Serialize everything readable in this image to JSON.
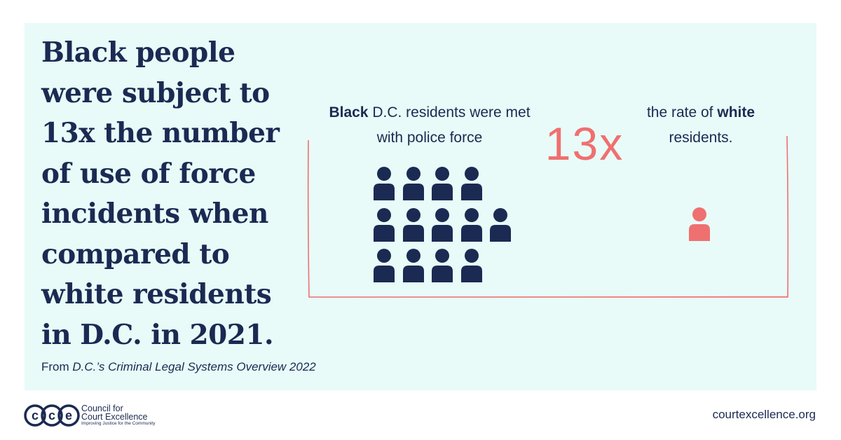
{
  "headline": "Black people were subject to 13x the number of use of force incidents when compared to white residents in D.C. in 2021.",
  "source": {
    "prefix": "From ",
    "title": "D.C.’s Criminal Legal Systems Overview 2022"
  },
  "comparison": {
    "left_bold": "Black",
    "left_rest": " D.C. residents were met with police force",
    "multiplier": "13x",
    "right_prefix": "the rate of ",
    "right_bold": "white",
    "right_suffix": " residents.",
    "black_count": 13,
    "white_count": 1
  },
  "logo": {
    "mark": "cce",
    "line1": "Council for",
    "line2": "Court Excellence",
    "tagline": "Improving Justice for the Community"
  },
  "url": "courtexcellence.org",
  "colors": {
    "background": "#e8fbf8",
    "navy": "#1b2a52",
    "coral": "#ef7070"
  }
}
